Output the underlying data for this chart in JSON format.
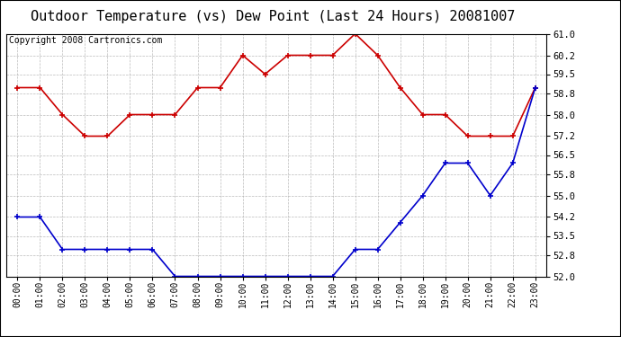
{
  "title": "Outdoor Temperature (vs) Dew Point (Last 24 Hours) 20081007",
  "copyright": "Copyright 2008 Cartronics.com",
  "hours": [
    "00:00",
    "01:00",
    "02:00",
    "03:00",
    "04:00",
    "05:00",
    "06:00",
    "07:00",
    "08:00",
    "09:00",
    "10:00",
    "11:00",
    "12:00",
    "13:00",
    "14:00",
    "15:00",
    "16:00",
    "17:00",
    "18:00",
    "19:00",
    "20:00",
    "21:00",
    "22:00",
    "23:00"
  ],
  "temp": [
    59.0,
    59.0,
    58.0,
    57.2,
    57.2,
    58.0,
    58.0,
    58.0,
    59.0,
    59.0,
    60.2,
    59.5,
    60.2,
    60.2,
    60.2,
    61.0,
    60.2,
    59.0,
    58.0,
    58.0,
    57.2,
    57.2,
    57.2,
    59.0
  ],
  "dew": [
    54.2,
    54.2,
    53.0,
    53.0,
    53.0,
    53.0,
    53.0,
    52.0,
    52.0,
    52.0,
    52.0,
    52.0,
    52.0,
    52.0,
    52.0,
    53.0,
    53.0,
    54.0,
    55.0,
    56.2,
    56.2,
    55.0,
    56.2,
    59.0
  ],
  "temp_color": "#cc0000",
  "dew_color": "#0000cc",
  "bg_color": "#ffffff",
  "grid_color": "#aaaaaa",
  "ylim": [
    52.0,
    61.0
  ],
  "yticks": [
    52.0,
    52.8,
    53.5,
    54.2,
    55.0,
    55.8,
    56.5,
    57.2,
    58.0,
    58.8,
    59.5,
    60.2,
    61.0
  ],
  "title_fontsize": 11,
  "copyright_fontsize": 7
}
